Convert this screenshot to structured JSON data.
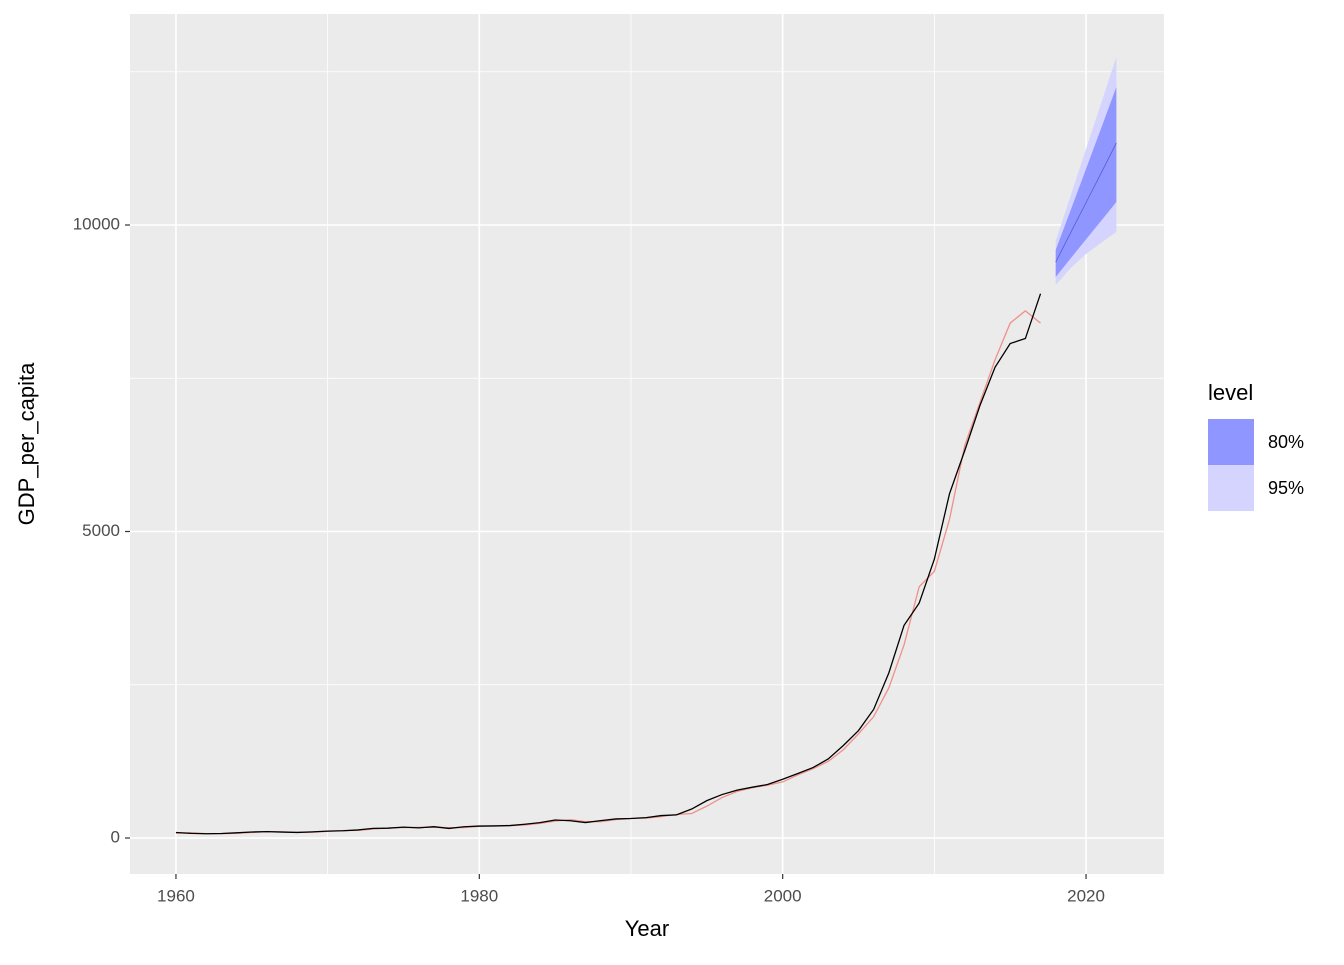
{
  "chart_data": {
    "type": "forecast",
    "x_label": "Year",
    "y_label": "GDP_per_capita",
    "xlim": [
      1956.97,
      2025.14
    ],
    "ylim": [
      -587,
      13442
    ],
    "xticks": [
      1960,
      1980,
      2000,
      2020
    ],
    "yticks": [
      0,
      5000,
      10000
    ],
    "x_minor_grid": [
      1970,
      1990,
      2010
    ],
    "y_minor_grid": [
      2500,
      7500,
      12500
    ],
    "grid": true,
    "x": [
      1960,
      1961,
      1962,
      1963,
      1964,
      1965,
      1966,
      1967,
      1968,
      1969,
      1970,
      1971,
      1972,
      1973,
      1974,
      1975,
      1976,
      1977,
      1978,
      1979,
      1980,
      1981,
      1982,
      1983,
      1984,
      1985,
      1986,
      1987,
      1988,
      1989,
      1990,
      1991,
      1992,
      1993,
      1994,
      1995,
      1996,
      1997,
      1998,
      1999,
      2000,
      2001,
      2002,
      2003,
      2004,
      2005,
      2006,
      2007,
      2008,
      2009,
      2010,
      2011,
      2012,
      2013,
      2014,
      2015,
      2016,
      2017
    ],
    "actual": {
      "color": "#000000",
      "values": [
        90,
        76,
        70,
        74,
        85,
        98,
        104,
        97,
        91,
        100,
        113,
        119,
        132,
        157,
        160,
        178,
        165,
        185,
        156,
        184,
        195,
        197,
        203,
        225,
        251,
        294,
        282,
        252,
        284,
        311,
        318,
        333,
        366,
        377,
        473,
        610,
        709,
        782,
        829,
        873,
        959,
        1053,
        1149,
        1289,
        1509,
        1753,
        2099,
        2694,
        3468,
        3832,
        4550,
        5618,
        6317,
        7051,
        7679,
        8067,
        8148,
        8879
      ]
    },
    "fitted": {
      "color": "#f0908a",
      "values": [
        80,
        85,
        72,
        70,
        78,
        90,
        105,
        100,
        92,
        95,
        108,
        120,
        125,
        145,
        165,
        170,
        175,
        175,
        170,
        170,
        190,
        200,
        200,
        212,
        240,
        275,
        300,
        268,
        265,
        300,
        320,
        325,
        350,
        385,
        400,
        520,
        660,
        760,
        820,
        860,
        915,
        1030,
        1130,
        1250,
        1440,
        1700,
        1980,
        2450,
        3150,
        4100,
        4350,
        5200,
        6400,
        7100,
        7800,
        8400,
        8600,
        8400
      ]
    },
    "forecast_x": [
      2018,
      2019,
      2020,
      2021,
      2022
    ],
    "forecast_mean": {
      "color": "#5a5ad6",
      "values": [
        9396,
        9880,
        10365,
        10850,
        11338
      ]
    },
    "legend_title": "level",
    "intervals": [
      {
        "name": "80%",
        "color": "#8f96ff",
        "lower": [
          9152,
          9460,
          9765,
          10070,
          10375
        ],
        "upper": [
          9592,
          10250,
          10915,
          11580,
          12251
        ]
      },
      {
        "name": "95%",
        "color": "#d4d4ff",
        "lower": [
          9021,
          9300,
          9527,
          9710,
          9886
        ],
        "upper": [
          9739,
          10490,
          11240,
          11990,
          12741
        ]
      }
    ]
  }
}
